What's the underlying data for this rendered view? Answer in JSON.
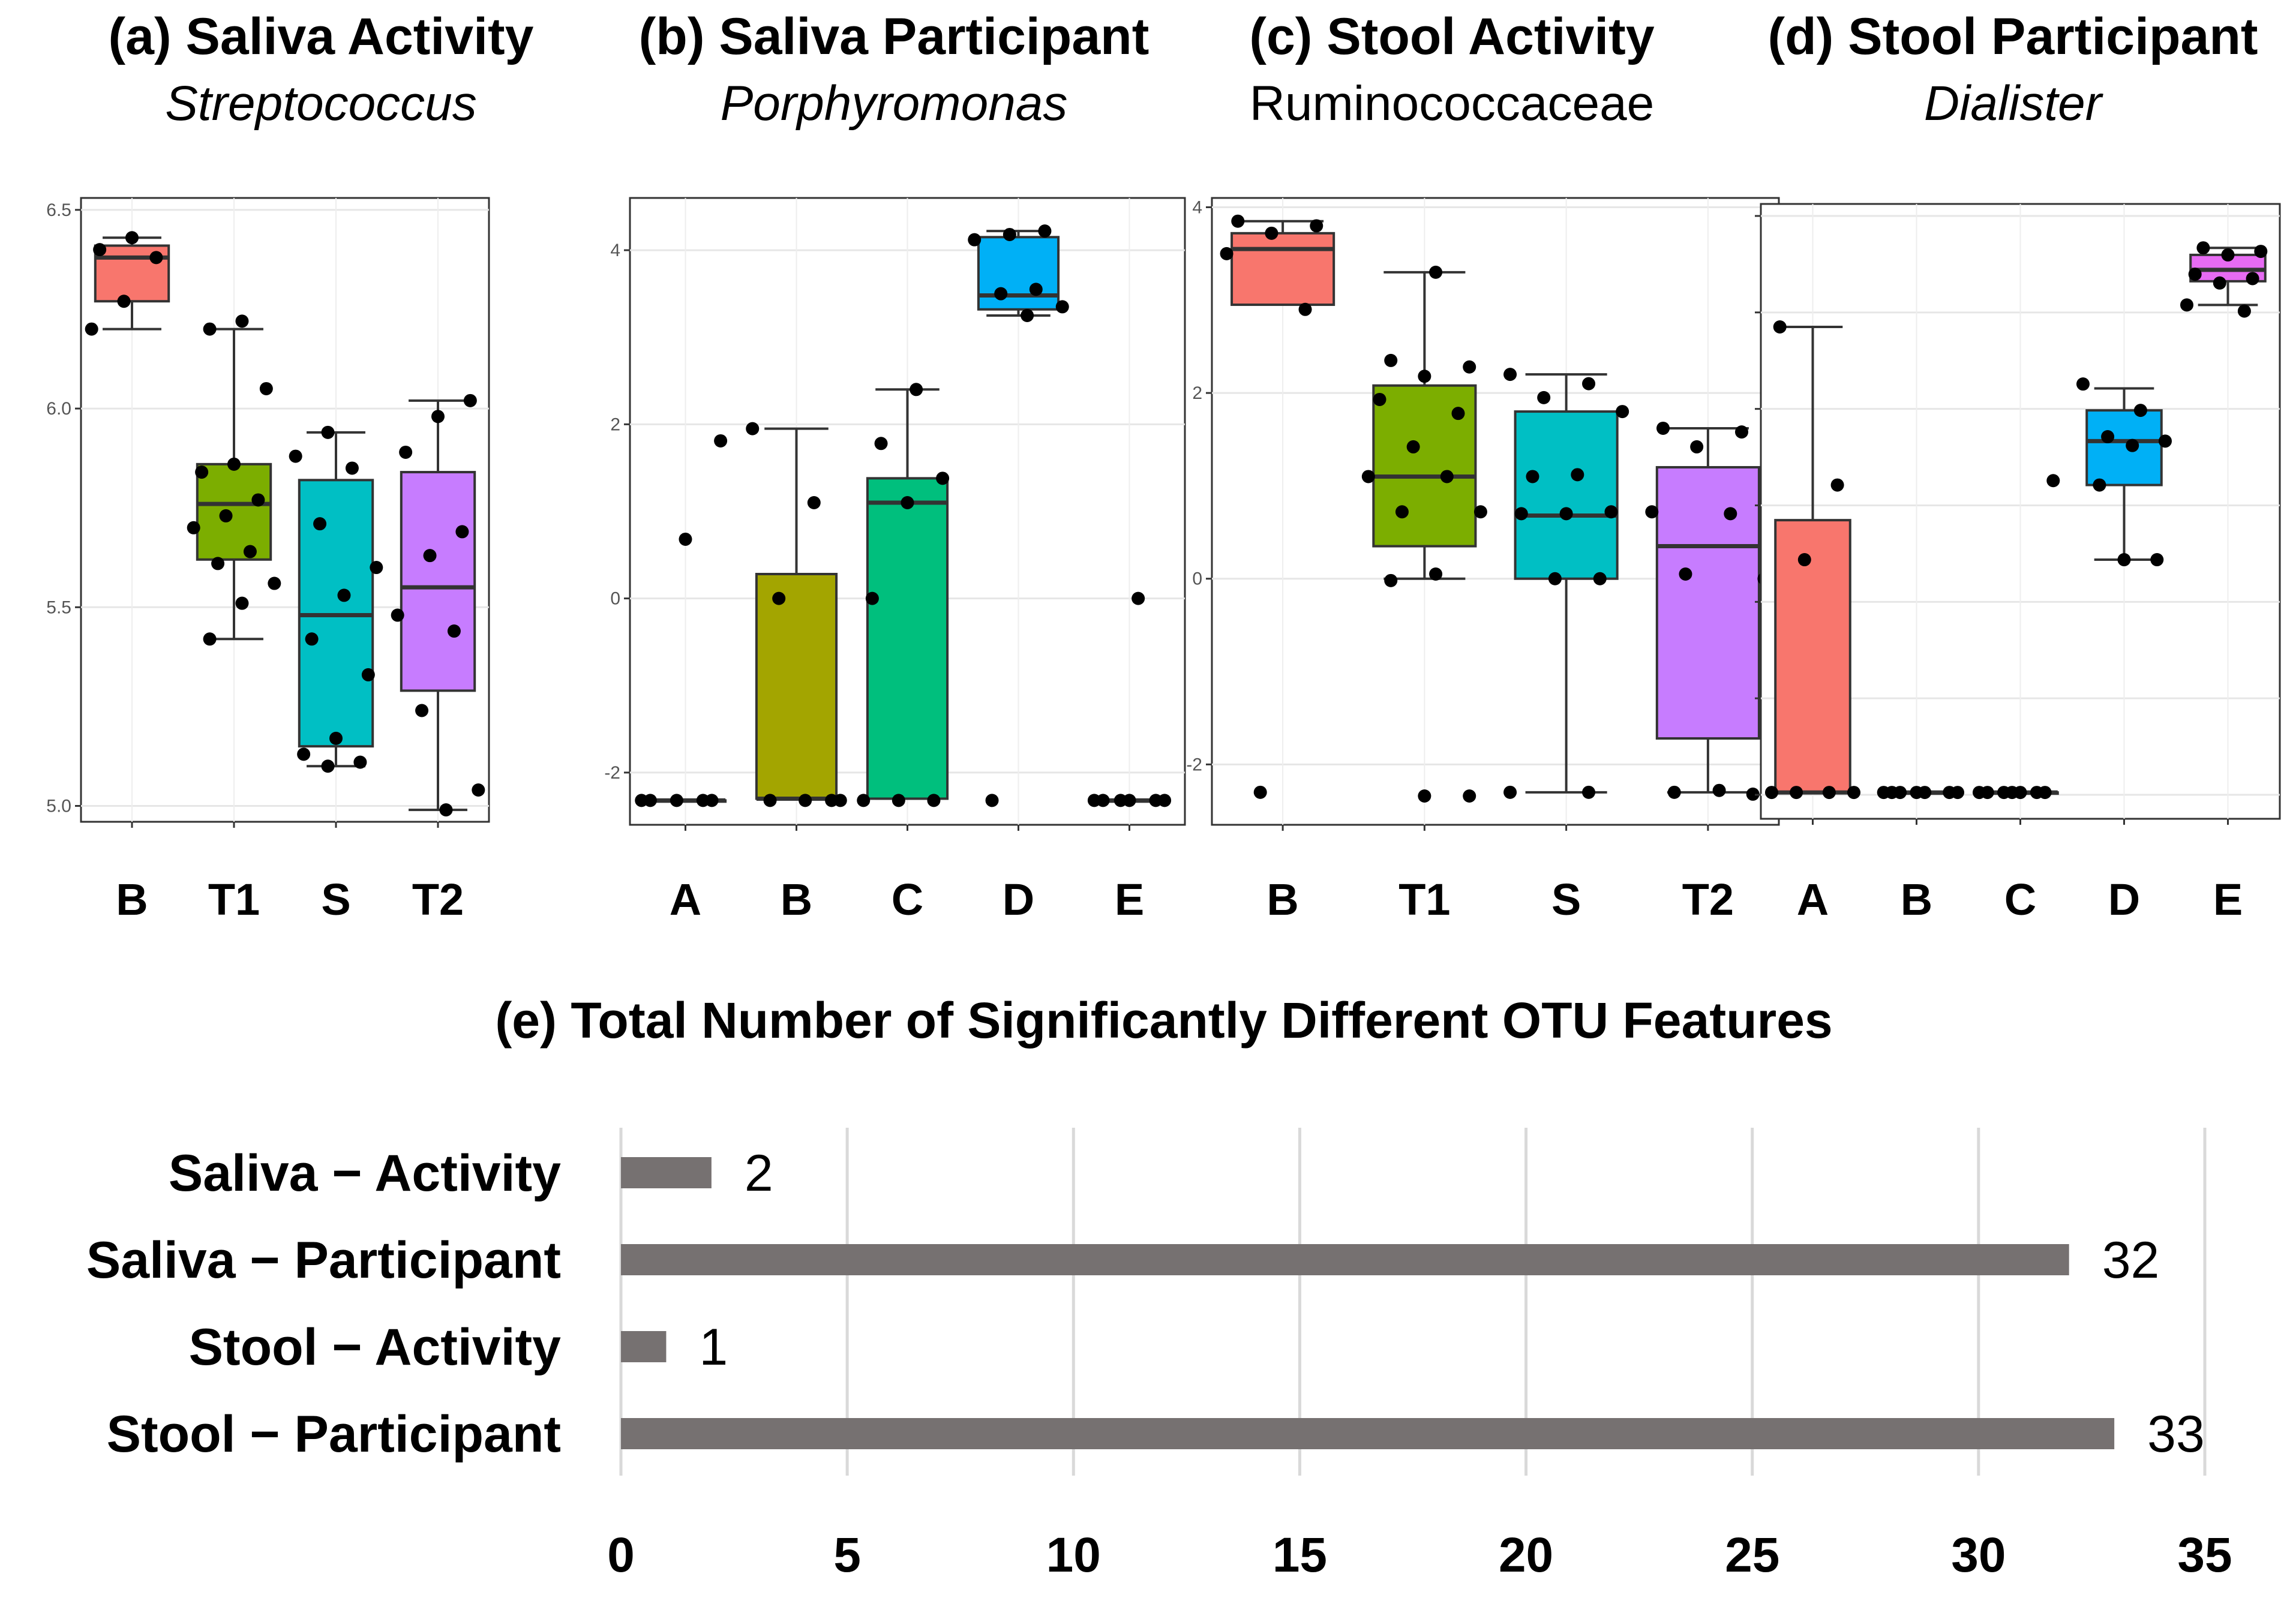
{
  "panels": [
    {
      "id": "a",
      "title": "(a)  Saliva Activity",
      "subtitle": "Streptococcus",
      "subtitle_italic": true,
      "categories": [
        "B",
        "T1",
        "S",
        "T2"
      ],
      "yticks": [
        "5.0",
        "5.5",
        "6.0",
        "6.5"
      ],
      "ylim": [
        4.96,
        6.53
      ],
      "boxes": [
        {
          "cat": "B",
          "color": "#F8766D",
          "q1": 6.27,
          "median": 6.38,
          "q3": 6.41,
          "whisker_low": 6.2,
          "whisker_high": 6.43,
          "points": [
            6.2,
            6.27,
            6.38,
            6.4,
            6.43
          ]
        },
        {
          "cat": "T1",
          "color": "#7CAE00",
          "q1": 5.62,
          "median": 5.76,
          "q3": 5.86,
          "whisker_low": 5.42,
          "whisker_high": 6.2,
          "points": [
            5.42,
            5.51,
            5.56,
            5.61,
            5.64,
            5.7,
            5.73,
            5.77,
            5.84,
            5.86,
            6.05,
            6.2,
            6.22
          ]
        },
        {
          "cat": "S",
          "color": "#00BFC4",
          "q1": 5.15,
          "median": 5.48,
          "q3": 5.82,
          "whisker_low": 5.1,
          "whisker_high": 5.94,
          "points": [
            5.1,
            5.11,
            5.13,
            5.17,
            5.33,
            5.42,
            5.53,
            5.6,
            5.71,
            5.85,
            5.88,
            5.94
          ]
        },
        {
          "cat": "T2",
          "color": "#C77CFF",
          "q1": 5.29,
          "median": 5.55,
          "q3": 5.84,
          "whisker_low": 4.99,
          "whisker_high": 6.02,
          "points": [
            4.99,
            5.04,
            5.24,
            5.44,
            5.48,
            5.63,
            5.69,
            5.89,
            5.98,
            6.02
          ]
        }
      ]
    },
    {
      "id": "b",
      "title": "(b) Saliva Participant",
      "subtitle": "Porphyromonas",
      "subtitle_italic": true,
      "categories": [
        "A",
        "B",
        "C",
        "D",
        "E"
      ],
      "yticks": [
        "-2",
        "0",
        "2",
        "4"
      ],
      "ylim": [
        -2.6,
        4.6
      ],
      "boxes": [
        {
          "cat": "A",
          "color": null,
          "q1": -2.32,
          "median": -2.32,
          "q3": -2.32,
          "whisker_low": -2.32,
          "whisker_high": -2.32,
          "points": [
            -2.32,
            -2.32,
            -2.32,
            -2.32,
            -2.32,
            0.68,
            1.81
          ]
        },
        {
          "cat": "B",
          "color": "#A3A500",
          "q1": -2.3,
          "median": -2.3,
          "q3": 0.28,
          "whisker_low": -2.3,
          "whisker_high": 1.95,
          "points": [
            -2.32,
            -2.32,
            -2.32,
            -2.32,
            0.0,
            1.1,
            1.95
          ]
        },
        {
          "cat": "C",
          "color": "#00BF7D",
          "q1": -2.3,
          "median": 1.1,
          "q3": 1.38,
          "whisker_low": -2.3,
          "whisker_high": 2.4,
          "points": [
            -2.32,
            -2.32,
            -2.32,
            0.0,
            1.1,
            1.38,
            1.78,
            2.4
          ]
        },
        {
          "cat": "D",
          "color": "#00B0F6",
          "q1": 3.32,
          "median": 3.48,
          "q3": 4.15,
          "whisker_low": 3.25,
          "whisker_high": 4.22,
          "points": [
            -2.32,
            3.25,
            3.35,
            3.5,
            3.55,
            4.12,
            4.18,
            4.22
          ]
        },
        {
          "cat": "E",
          "color": null,
          "q1": -2.32,
          "median": -2.32,
          "q3": -2.32,
          "whisker_low": -2.32,
          "whisker_high": -2.32,
          "points": [
            -2.32,
            -2.32,
            -2.32,
            -2.32,
            -2.32,
            -2.32,
            0.0
          ]
        }
      ]
    },
    {
      "id": "c",
      "title": "(c) Stool Activity",
      "subtitle": "Ruminococcaceae",
      "subtitle_italic": false,
      "categories": [
        "B",
        "T1",
        "S",
        "T2"
      ],
      "yticks": [
        "-2",
        "0",
        "2",
        "4"
      ],
      "ylim": [
        -2.65,
        4.1
      ],
      "boxes": [
        {
          "cat": "B",
          "color": "#F8766D",
          "q1": 2.95,
          "median": 3.55,
          "q3": 3.72,
          "whisker_low": 2.95,
          "whisker_high": 3.85,
          "points": [
            -2.3,
            2.9,
            3.5,
            3.72,
            3.8,
            3.85
          ]
        },
        {
          "cat": "T1",
          "color": "#7CAE00",
          "q1": 0.35,
          "median": 1.1,
          "q3": 2.08,
          "whisker_low": 0.0,
          "whisker_high": 3.3,
          "points": [
            -2.34,
            -2.34,
            -0.02,
            0.05,
            0.72,
            0.72,
            1.1,
            1.1,
            1.42,
            1.78,
            1.93,
            2.18,
            2.28,
            2.35,
            3.3
          ]
        },
        {
          "cat": "S",
          "color": "#00BFC4",
          "q1": 0.0,
          "median": 0.68,
          "q3": 1.8,
          "whisker_low": -2.3,
          "whisker_high": 2.2,
          "points": [
            -2.3,
            -2.3,
            0.0,
            0.0,
            0.7,
            0.7,
            0.72,
            1.1,
            1.12,
            1.8,
            1.95,
            2.1,
            2.2
          ]
        },
        {
          "cat": "T2",
          "color": "#C77CFF",
          "q1": -1.72,
          "median": 0.35,
          "q3": 1.2,
          "whisker_low": -2.3,
          "whisker_high": 1.62,
          "points": [
            -2.32,
            -2.3,
            -2.28,
            0.0,
            0.05,
            0.7,
            0.72,
            1.42,
            1.58,
            1.62
          ]
        }
      ]
    },
    {
      "id": "d",
      "title": "(d) Stool Participant",
      "subtitle": "Dialister",
      "subtitle_italic": true,
      "categories": [
        "A",
        "B",
        "C",
        "D",
        "E"
      ],
      "yticks": [],
      "ylim": [
        -2.6,
        4.4
      ],
      "boxes": [
        {
          "cat": "A",
          "color": "#F8766D",
          "q1": -2.3,
          "median": -2.3,
          "q3": 0.8,
          "whisker_low": -2.3,
          "whisker_high": 3.0,
          "points": [
            -2.3,
            -2.3,
            -2.3,
            -2.3,
            0.35,
            1.2,
            3.0
          ]
        },
        {
          "cat": "B",
          "color": null,
          "q1": -2.3,
          "median": -2.3,
          "q3": -2.3,
          "whisker_low": -2.3,
          "whisker_high": -2.3,
          "points": [
            -2.3,
            -2.3,
            -2.3,
            -2.3,
            -2.3,
            -2.3,
            -2.3
          ]
        },
        {
          "cat": "C",
          "color": null,
          "q1": -2.3,
          "median": -2.3,
          "q3": -2.3,
          "whisker_low": -2.3,
          "whisker_high": -2.3,
          "points": [
            -2.3,
            -2.3,
            -2.3,
            -2.3,
            -2.3,
            -2.3,
            -2.3,
            1.25
          ]
        },
        {
          "cat": "D",
          "color": "#00B0F6",
          "q1": 1.2,
          "median": 1.7,
          "q3": 2.05,
          "whisker_low": 0.35,
          "whisker_high": 2.3,
          "points": [
            0.35,
            0.35,
            1.2,
            1.65,
            1.7,
            1.75,
            2.05,
            2.35
          ]
        },
        {
          "cat": "E",
          "color": "#E76BF3",
          "q1": 3.52,
          "median": 3.65,
          "q3": 3.82,
          "whisker_low": 3.25,
          "whisker_high": 3.9,
          "points": [
            3.18,
            3.25,
            3.5,
            3.55,
            3.6,
            3.82,
            3.86,
            3.9
          ]
        }
      ]
    }
  ],
  "chart_data": {
    "type": "bar",
    "orientation": "horizontal",
    "title": "(e) Total Number of Significantly Different OTU Features",
    "categories": [
      "Saliva − Activity",
      "Saliva − Participant",
      "Stool − Activity",
      "Stool − Participant"
    ],
    "values": [
      2,
      32,
      1,
      33
    ],
    "value_labels": [
      "2",
      "32",
      "1",
      "33"
    ],
    "xticks": [
      "0",
      "5",
      "10",
      "15",
      "20",
      "25",
      "30",
      "35"
    ],
    "xlim": [
      0,
      35
    ],
    "grid": true,
    "bar_color": "#767171"
  }
}
